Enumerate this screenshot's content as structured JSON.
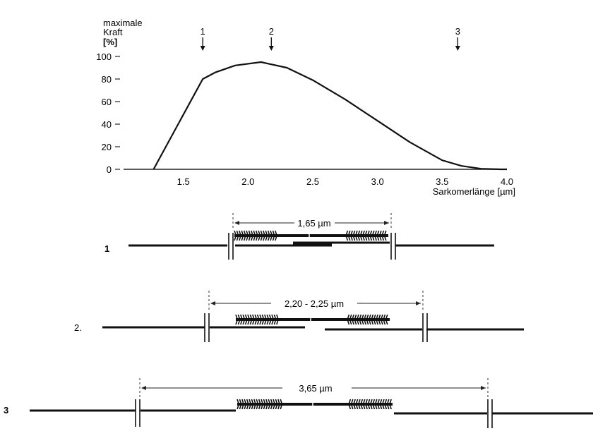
{
  "chart_data": {
    "type": "line",
    "ylabel_lines": [
      "maximale",
      "Kraft",
      "[%]"
    ],
    "xlabel": "Sarkomerlänge [µm]",
    "x_ticks": [
      "1.5",
      "2.0",
      "2.5",
      "3.0",
      "3.5",
      "4.0"
    ],
    "y_ticks": [
      "0",
      "20",
      "40",
      "60",
      "80",
      "100"
    ],
    "xlim": [
      1.0,
      4.0
    ],
    "ylim": [
      0,
      100
    ],
    "grid": false,
    "x": [
      1.27,
      1.65,
      1.75,
      1.9,
      2.1,
      2.3,
      2.5,
      2.75,
      3.0,
      3.25,
      3.5,
      3.65,
      3.8,
      3.95,
      4.0
    ],
    "y": [
      0,
      80,
      86,
      92,
      95,
      90,
      79,
      62,
      43,
      24,
      8,
      3,
      0.5,
      0,
      0
    ],
    "markers": [
      {
        "label": "1",
        "x": 1.65
      },
      {
        "label": "2",
        "x": 2.18
      },
      {
        "label": "3",
        "x": 3.62
      }
    ]
  },
  "sarcomeres": [
    {
      "label": "1",
      "length_text": "1,65 µm"
    },
    {
      "label": "2.",
      "length_text": "2,20 - 2,25 µm"
    },
    {
      "label": "3",
      "length_text": "3,65 µm"
    }
  ]
}
